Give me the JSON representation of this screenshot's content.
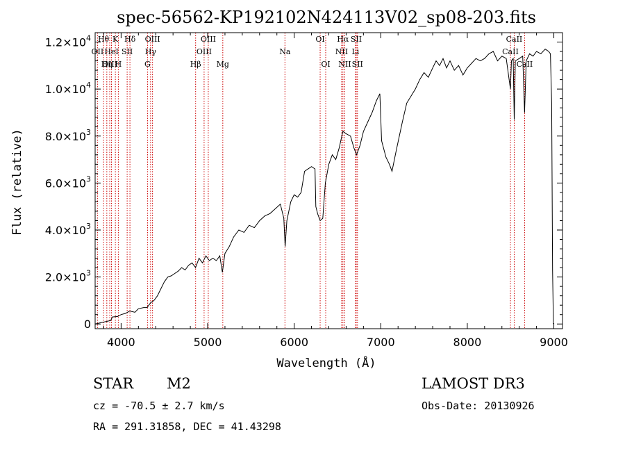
{
  "chart_data": {
    "type": "line",
    "title": "spec-56562-KP192102N424113V02_sp08-203.fits",
    "xlabel": "Wavelength (Å)",
    "ylabel": "Flux (relative)",
    "xlim": [
      3700,
      9100
    ],
    "ylim": [
      -200,
      12400
    ],
    "x_ticks": [
      {
        "value": 4000,
        "label": "4000"
      },
      {
        "value": 5000,
        "label": "5000"
      },
      {
        "value": 6000,
        "label": "6000"
      },
      {
        "value": 7000,
        "label": "7000"
      },
      {
        "value": 8000,
        "label": "8000"
      },
      {
        "value": 9000,
        "label": "9000"
      }
    ],
    "y_ticks": [
      {
        "value": 0,
        "label": "0",
        "mantissa": "0",
        "exponent": ""
      },
      {
        "value": 2000,
        "label": "2.0×10³",
        "mantissa": "2.0×10",
        "exponent": "3"
      },
      {
        "value": 4000,
        "label": "4.0×10³",
        "mantissa": "4.0×10",
        "exponent": "3"
      },
      {
        "value": 6000,
        "label": "6.0×10³",
        "mantissa": "6.0×10",
        "exponent": "3"
      },
      {
        "value": 8000,
        "label": "8.0×10³",
        "mantissa": "8.0×10",
        "exponent": "3"
      },
      {
        "value": 10000,
        "label": "1.0×10⁴",
        "mantissa": "1.0×10",
        "exponent": "4"
      },
      {
        "value": 12000,
        "label": "1.2×10⁴",
        "mantissa": "1.2×10",
        "exponent": "4"
      }
    ],
    "series": [
      {
        "name": "spectrum",
        "color": "#000000",
        "points": [
          [
            3700,
            0
          ],
          [
            3760,
            50
          ],
          [
            3820,
            100
          ],
          [
            3880,
            150
          ],
          [
            3900,
            300
          ],
          [
            3960,
            320
          ],
          [
            4000,
            400
          ],
          [
            4050,
            450
          ],
          [
            4100,
            550
          ],
          [
            4160,
            500
          ],
          [
            4200,
            650
          ],
          [
            4260,
            700
          ],
          [
            4300,
            700
          ],
          [
            4340,
            900
          ],
          [
            4380,
            1000
          ],
          [
            4420,
            1200
          ],
          [
            4460,
            1500
          ],
          [
            4500,
            1800
          ],
          [
            4540,
            2000
          ],
          [
            4580,
            2050
          ],
          [
            4620,
            2150
          ],
          [
            4660,
            2250
          ],
          [
            4700,
            2400
          ],
          [
            4740,
            2300
          ],
          [
            4780,
            2500
          ],
          [
            4820,
            2600
          ],
          [
            4860,
            2400
          ],
          [
            4900,
            2800
          ],
          [
            4940,
            2600
          ],
          [
            4980,
            2900
          ],
          [
            5020,
            2700
          ],
          [
            5060,
            2800
          ],
          [
            5100,
            2700
          ],
          [
            5140,
            2900
          ],
          [
            5170,
            2200
          ],
          [
            5200,
            3000
          ],
          [
            5250,
            3300
          ],
          [
            5300,
            3700
          ],
          [
            5360,
            4000
          ],
          [
            5420,
            3900
          ],
          [
            5480,
            4200
          ],
          [
            5540,
            4100
          ],
          [
            5600,
            4400
          ],
          [
            5660,
            4600
          ],
          [
            5720,
            4700
          ],
          [
            5780,
            4900
          ],
          [
            5840,
            5100
          ],
          [
            5880,
            4500
          ],
          [
            5895,
            3300
          ],
          [
            5915,
            4400
          ],
          [
            5960,
            5200
          ],
          [
            6000,
            5500
          ],
          [
            6040,
            5400
          ],
          [
            6080,
            5600
          ],
          [
            6120,
            6500
          ],
          [
            6160,
            6600
          ],
          [
            6200,
            6700
          ],
          [
            6240,
            6600
          ],
          [
            6250,
            5000
          ],
          [
            6270,
            4700
          ],
          [
            6300,
            4400
          ],
          [
            6330,
            4500
          ],
          [
            6360,
            6000
          ],
          [
            6400,
            6800
          ],
          [
            6440,
            7200
          ],
          [
            6480,
            7000
          ],
          [
            6520,
            7500
          ],
          [
            6550,
            8000
          ],
          [
            6563,
            8200
          ],
          [
            6600,
            8100
          ],
          [
            6650,
            8000
          ],
          [
            6690,
            7500
          ],
          [
            6720,
            7200
          ],
          [
            6760,
            7600
          ],
          [
            6800,
            8200
          ],
          [
            6850,
            8600
          ],
          [
            6900,
            9000
          ],
          [
            6950,
            9500
          ],
          [
            6990,
            9800
          ],
          [
            7010,
            7800
          ],
          [
            7060,
            7100
          ],
          [
            7100,
            6800
          ],
          [
            7130,
            6500
          ],
          [
            7180,
            7400
          ],
          [
            7250,
            8600
          ],
          [
            7300,
            9400
          ],
          [
            7350,
            9700
          ],
          [
            7400,
            10000
          ],
          [
            7450,
            10400
          ],
          [
            7500,
            10700
          ],
          [
            7550,
            10500
          ],
          [
            7600,
            10900
          ],
          [
            7640,
            11200
          ],
          [
            7680,
            11000
          ],
          [
            7720,
            11300
          ],
          [
            7760,
            10900
          ],
          [
            7800,
            11200
          ],
          [
            7850,
            10800
          ],
          [
            7900,
            11000
          ],
          [
            7950,
            10600
          ],
          [
            8000,
            10900
          ],
          [
            8050,
            11100
          ],
          [
            8100,
            11300
          ],
          [
            8150,
            11200
          ],
          [
            8200,
            11300
          ],
          [
            8250,
            11500
          ],
          [
            8300,
            11600
          ],
          [
            8350,
            11200
          ],
          [
            8400,
            11400
          ],
          [
            8450,
            11300
          ],
          [
            8498,
            10000
          ],
          [
            8510,
            11200
          ],
          [
            8530,
            11300
          ],
          [
            8542,
            8700
          ],
          [
            8555,
            11200
          ],
          [
            8600,
            11300
          ],
          [
            8640,
            11400
          ],
          [
            8662,
            9000
          ],
          [
            8680,
            11200
          ],
          [
            8720,
            11500
          ],
          [
            8760,
            11400
          ],
          [
            8800,
            11600
          ],
          [
            8850,
            11500
          ],
          [
            8900,
            11700
          ],
          [
            8940,
            11600
          ],
          [
            8960,
            11500
          ],
          [
            8975,
            9400
          ],
          [
            8985,
            2300
          ],
          [
            8995,
            0
          ]
        ]
      }
    ],
    "lines": [
      {
        "name": "Hθ",
        "wavelength": 3797,
        "row": 0
      },
      {
        "name": "OII",
        "wavelength": 3727,
        "row": 1
      },
      {
        "name": "OIII",
        "wavelength": 3869,
        "row": 2
      },
      {
        "name": "K",
        "wavelength": 3934,
        "row": 0
      },
      {
        "name": "HeI",
        "wavelength": 3889,
        "row": 1
      },
      {
        "name": "Hη",
        "wavelength": 3835,
        "row": 2
      },
      {
        "name": "H",
        "wavelength": 3968,
        "row": 2
      },
      {
        "name": "Hδ",
        "wavelength": 4102,
        "row": 0
      },
      {
        "name": "SII",
        "wavelength": 4070,
        "row": 1
      },
      {
        "name": "OIII",
        "wavelength": 4363,
        "row": 0
      },
      {
        "name": "Hγ",
        "wavelength": 4341,
        "row": 1
      },
      {
        "name": "G",
        "wavelength": 4305,
        "row": 2
      },
      {
        "name": "Hβ",
        "wavelength": 4861,
        "row": 2
      },
      {
        "name": "OIII",
        "wavelength": 5007,
        "row": 0
      },
      {
        "name": "OIII",
        "wavelength": 4959,
        "row": 1
      },
      {
        "name": "Mg",
        "wavelength": 5175,
        "row": 2
      },
      {
        "name": "Na",
        "wavelength": 5893,
        "row": 1
      },
      {
        "name": "OI",
        "wavelength": 6300,
        "row": 0
      },
      {
        "name": "OI",
        "wavelength": 6364,
        "row": 2
      },
      {
        "name": "Hα",
        "wavelength": 6563,
        "row": 0
      },
      {
        "name": "NII",
        "wavelength": 6548,
        "row": 1
      },
      {
        "name": "NII",
        "wavelength": 6584,
        "row": 2
      },
      {
        "name": "SII",
        "wavelength": 6717,
        "row": 0
      },
      {
        "name": "Li",
        "wavelength": 6708,
        "row": 1
      },
      {
        "name": "SII",
        "wavelength": 6731,
        "row": 2
      },
      {
        "name": "CaII",
        "wavelength": 8542,
        "row": 0
      },
      {
        "name": "CaII",
        "wavelength": 8498,
        "row": 1
      },
      {
        "name": "CaII",
        "wavelength": 8662,
        "row": 2
      }
    ]
  },
  "info": {
    "class": "STAR",
    "subclass": "M2",
    "survey": "LAMOST DR3",
    "cz": "cz = -70.5 ± 2.7 km/s",
    "obs_date": "Obs-Date: 20130926",
    "coords": "RA = 291.31858, DEC =  41.43298"
  },
  "colors": {
    "spectrum": "#000000",
    "line_marker": "#cc0000",
    "axis": "#000000"
  }
}
